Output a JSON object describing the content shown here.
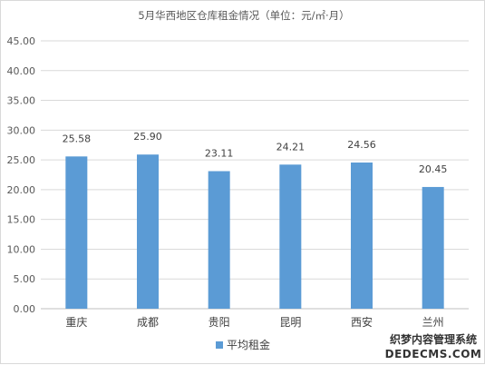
{
  "chart_data": {
    "type": "bar",
    "title": "5月华西地区仓库租金情况（单位：元/㎡·月）",
    "categories": [
      "重庆",
      "成都",
      "贵阳",
      "昆明",
      "西安",
      "兰州"
    ],
    "series": [
      {
        "name": "平均租金",
        "values": [
          25.58,
          25.9,
          23.11,
          24.21,
          24.56,
          20.45
        ]
      }
    ],
    "data_labels": [
      "25.58",
      "25.90",
      "23.11",
      "24.21",
      "24.56",
      "20.45"
    ],
    "ylim": [
      0,
      45
    ],
    "y_ticks": [
      "0.00",
      "5.00",
      "10.00",
      "15.00",
      "20.00",
      "25.00",
      "30.00",
      "35.00",
      "40.00",
      "45.00"
    ],
    "grid": true,
    "legend_position": "bottom",
    "bar_color": "#5b9bd5"
  },
  "watermark": {
    "line1": "织梦内容管理系统",
    "line2": "DEDECMS.COM"
  }
}
